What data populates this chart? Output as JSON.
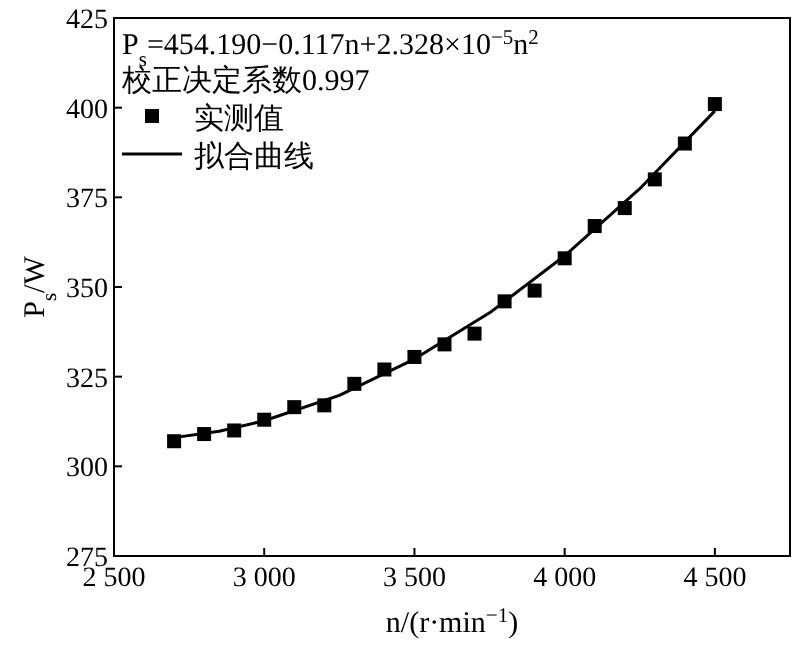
{
  "chart_data": {
    "type": "scatter",
    "xlabel": "n/(r·min$^{−1}$)",
    "ylabel": "P$_{s}$/W",
    "xlim": [
      2500,
      4750
    ],
    "ylim": [
      275,
      425
    ],
    "xticks": [
      {
        "value": 2500,
        "label": "2 500"
      },
      {
        "value": 3000,
        "label": "3 000"
      },
      {
        "value": 3500,
        "label": "3 500"
      },
      {
        "value": 4000,
        "label": "4 000"
      },
      {
        "value": 4500,
        "label": "4 500"
      }
    ],
    "yticks": [
      275,
      300,
      325,
      350,
      375,
      400,
      425
    ],
    "grid": false,
    "legend": "top left",
    "annotations": [
      "P$_{s}$=454.190−0.117n+2.328×10$^{−5}$n$^{2}$",
      "校正决定系数0.997"
    ],
    "series": [
      {
        "name": "实测值",
        "marker": "square",
        "color": "#000000",
        "x": [
          2700,
          2800,
          2900,
          3000,
          3100,
          3200,
          3300,
          3400,
          3500,
          3600,
          3700,
          3800,
          3900,
          4000,
          4100,
          4200,
          4300,
          4400,
          4500
        ],
        "values": [
          307,
          309,
          310,
          313,
          316.5,
          317,
          323,
          327,
          330.5,
          334,
          337,
          346,
          349,
          358,
          367,
          372,
          380,
          390,
          401
        ]
      },
      {
        "name": "拟合曲线",
        "type": "line",
        "marker": "none",
        "line_style": "solid",
        "color": "#000000",
        "x": [
          2700,
          2850,
          3000,
          3250,
          3500,
          3750,
          4000,
          4250,
          4500
        ],
        "values": [
          308.0,
          309.8,
          312.7,
          319.8,
          329.9,
          342.8,
          358.7,
          377.4,
          399.1
        ]
      }
    ]
  }
}
